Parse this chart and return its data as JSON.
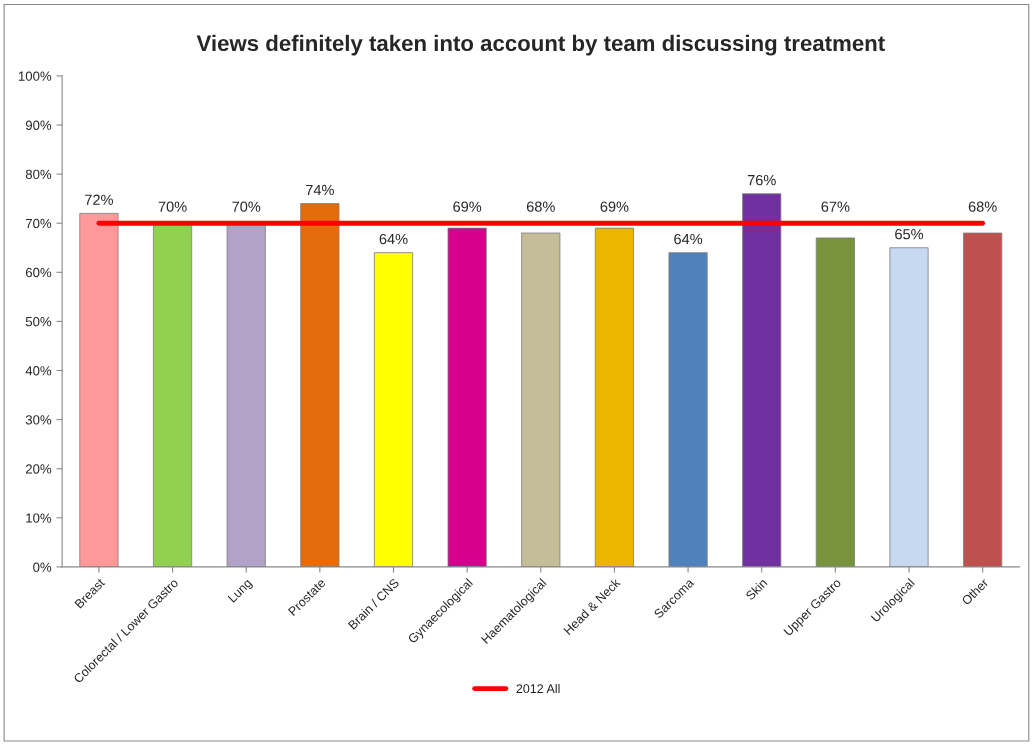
{
  "chart_data": {
    "type": "bar",
    "title": "Views definitely taken into account by team discussing treatment",
    "categories": [
      "Breast",
      "Colorectal / Lower Gastro",
      "Lung",
      "Prostate",
      "Brain / CNS",
      "Gynaecological",
      "Haematological",
      "Head & Neck",
      "Sarcoma",
      "Skin",
      "Upper Gastro",
      "Urological",
      "Other"
    ],
    "series": [
      {
        "values": [
          72,
          70,
          70,
          74,
          64,
          69,
          68,
          69,
          64,
          76,
          67,
          65,
          68
        ],
        "value_labels": [
          "72%",
          "70%",
          "70%",
          "74%",
          "64%",
          "69%",
          "68%",
          "69%",
          "64%",
          "76%",
          "67%",
          "65%",
          "68%"
        ],
        "colors": [
          "#ff9999",
          "#92d050",
          "#b3a2c7",
          "#e46c0a",
          "#ffff00",
          "#d6008c",
          "#c4bd97",
          "#eeb500",
          "#4f81bd",
          "#7030a0",
          "#77933c",
          "#c6d9f1",
          "#c0504d"
        ]
      },
      {
        "type": "line",
        "name": "2012 All",
        "color": "#ff0000",
        "values": [
          70,
          70,
          70,
          70,
          70,
          70,
          70,
          70,
          70,
          70,
          70,
          70,
          70
        ]
      }
    ],
    "ylim": [
      0,
      100
    ],
    "yticks": [
      {
        "value": 0,
        "label": "0%"
      },
      {
        "value": 10,
        "label": "10%"
      },
      {
        "value": 20,
        "label": "20%"
      },
      {
        "value": 30,
        "label": "30%"
      },
      {
        "value": 40,
        "label": "40%"
      },
      {
        "value": 50,
        "label": "50%"
      },
      {
        "value": 60,
        "label": "60%"
      },
      {
        "value": 70,
        "label": "70%"
      },
      {
        "value": 80,
        "label": "80%"
      },
      {
        "value": 90,
        "label": "90%"
      },
      {
        "value": 100,
        "label": "100%"
      }
    ],
    "legend": "bottom",
    "marker": "none"
  }
}
